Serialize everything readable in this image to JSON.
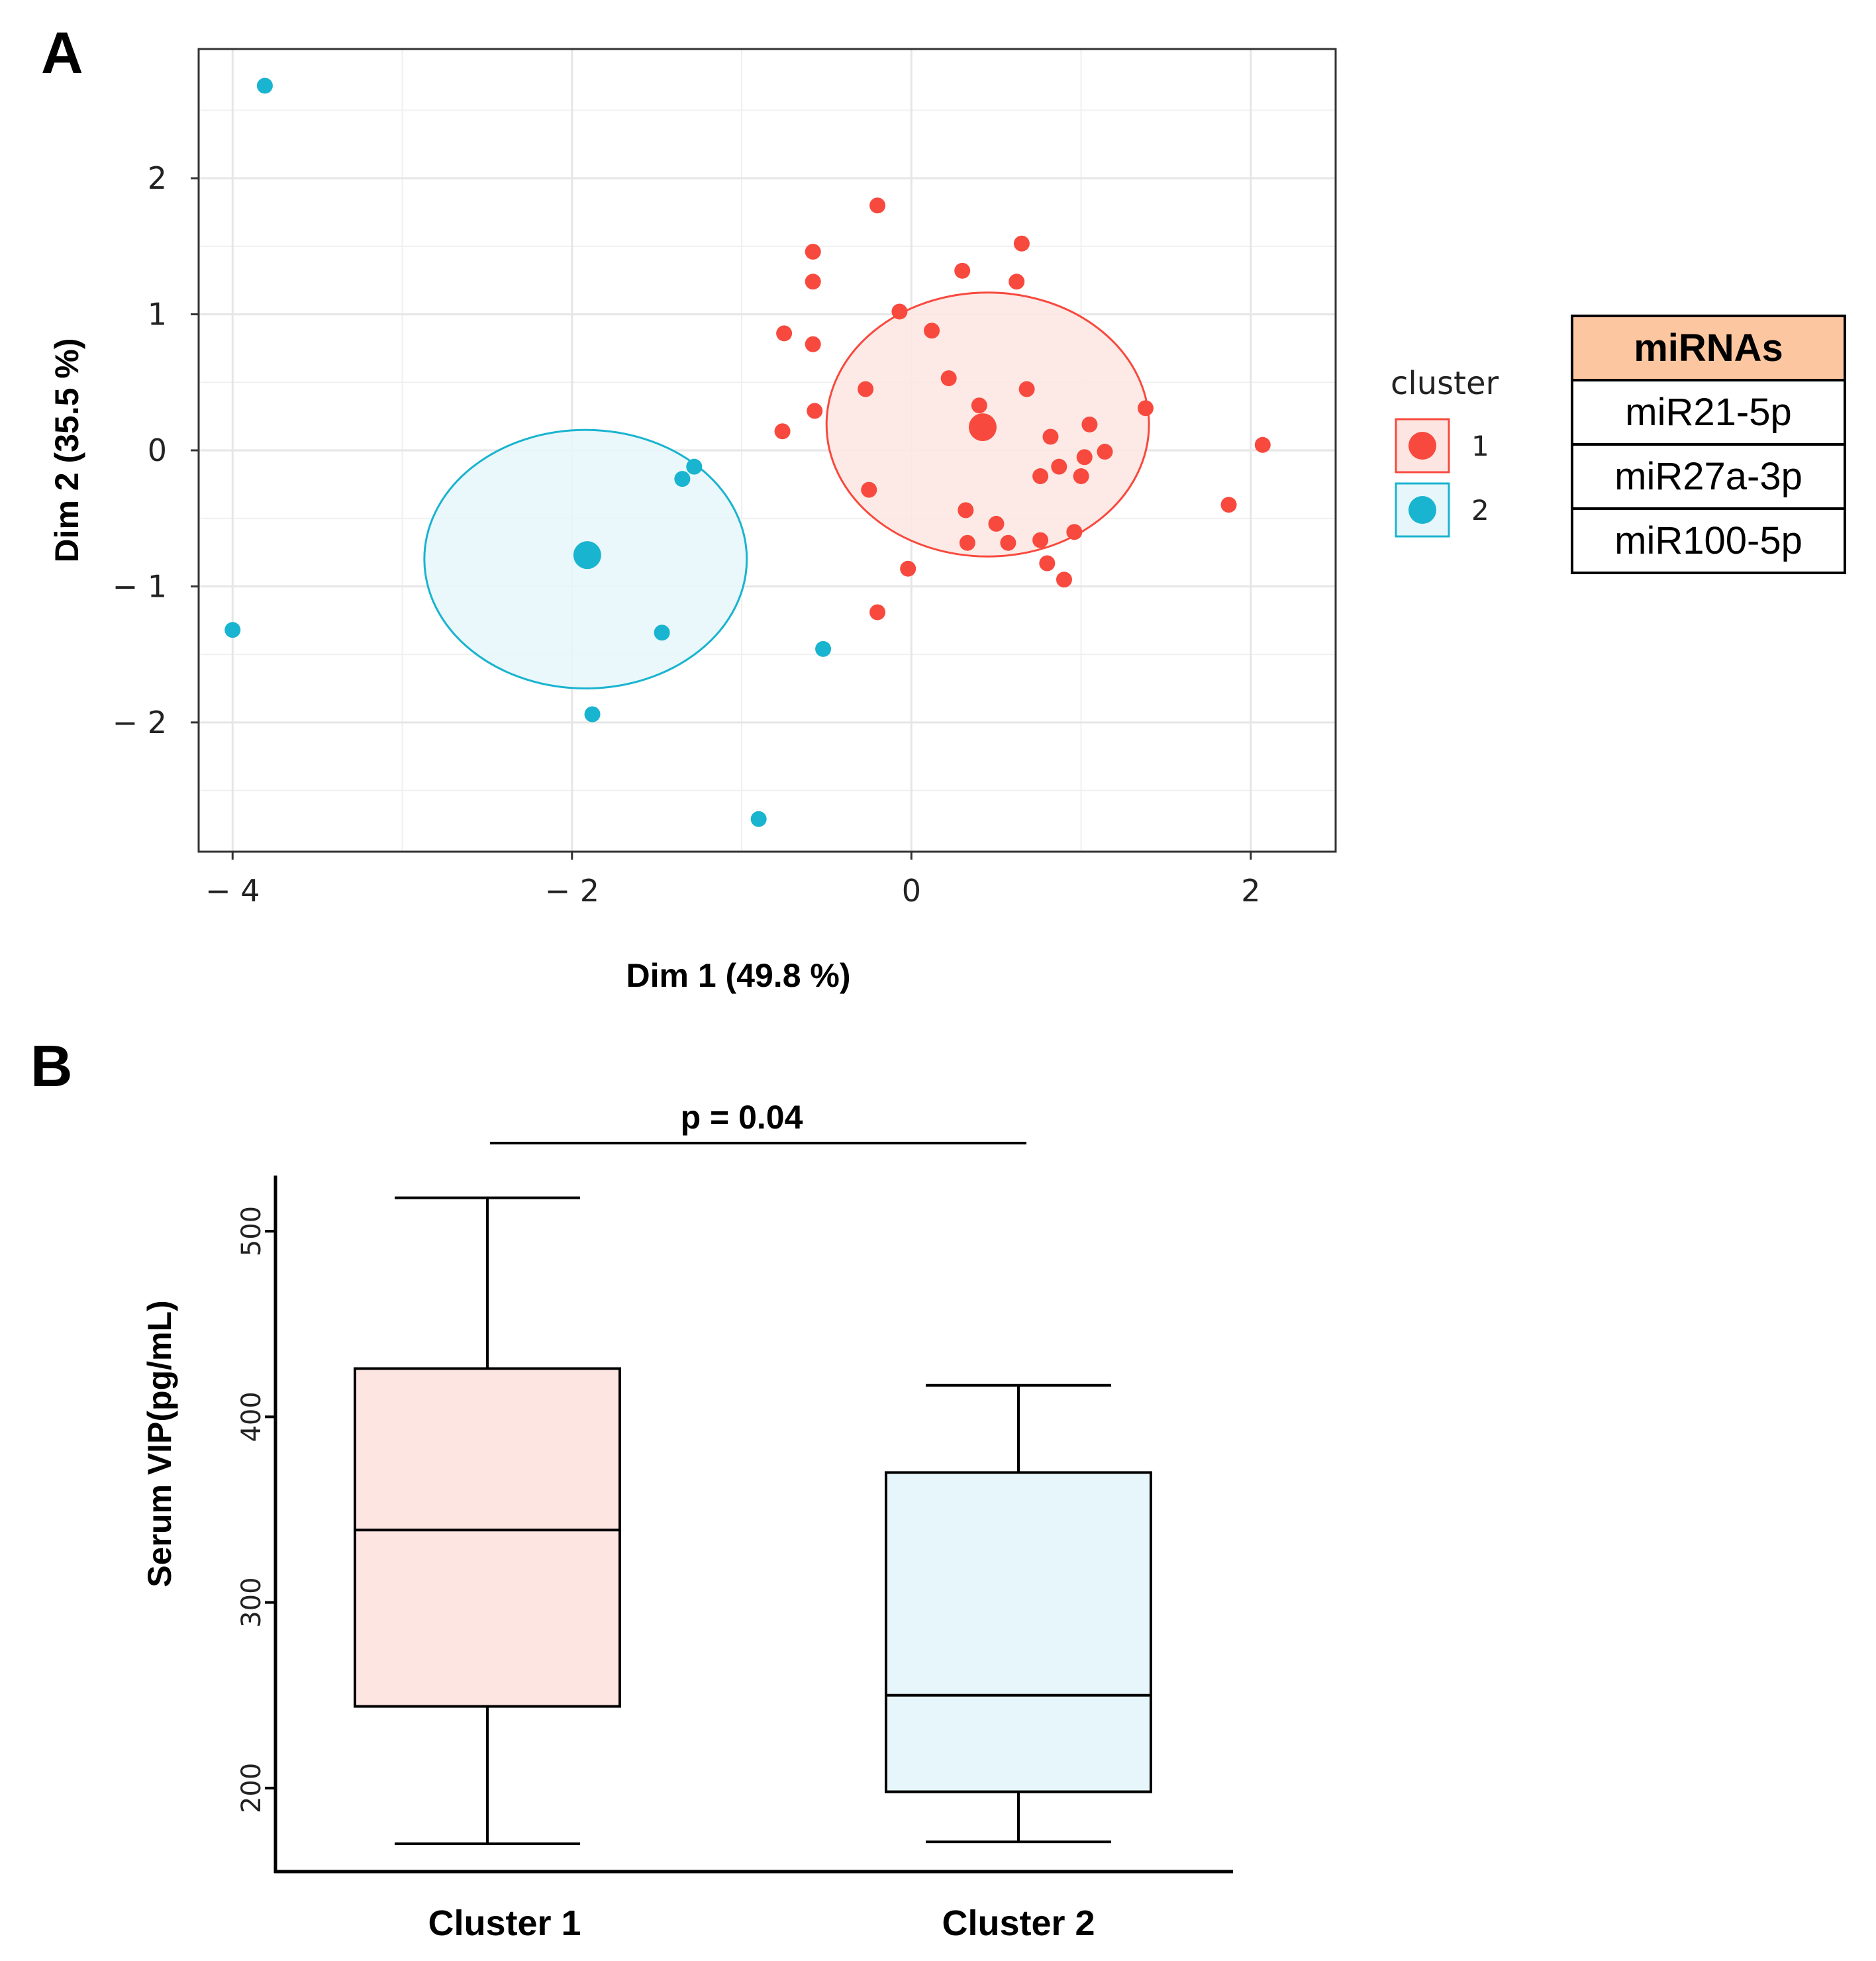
{
  "colors": {
    "cluster1": "#f8493e",
    "cluster2": "#19b4cf",
    "cluster1_fill": "#fde6e2",
    "cluster2_fill": "#e6f6fa",
    "table_header": "#fcc7a0",
    "grid": "#e6e6e6"
  },
  "chart_data": [
    {
      "panel": "A",
      "type": "scatter",
      "xlabel": "Dim 1 (49.8 %)",
      "ylabel": "Dim 2 (35.5 %)",
      "xlim": [
        -4.2,
        2.5
      ],
      "ylim": [
        -2.95,
        2.95
      ],
      "xticks": [
        -4,
        -2,
        0,
        2
      ],
      "xtick_labels": [
        "− 4",
        "− 2",
        "0",
        "2"
      ],
      "yticks": [
        -2,
        -1,
        0,
        1,
        2
      ],
      "ytick_labels": [
        "− 2",
        "− 1",
        "0",
        "1",
        "2"
      ],
      "grid": true,
      "legend": {
        "title": "cluster",
        "position": "right",
        "entries": [
          {
            "label": "1",
            "color": "#f8493e"
          },
          {
            "label": "2",
            "color": "#19b4cf"
          }
        ]
      },
      "series": [
        {
          "name": "1",
          "color": "#f8493e",
          "centroid": [
            0.42,
            0.17
          ],
          "ellipse": {
            "cx": 0.45,
            "cy": 0.19,
            "rx": 0.95,
            "ry": 0.97
          },
          "points": [
            [
              -0.2,
              1.8
            ],
            [
              0.65,
              1.52
            ],
            [
              -0.58,
              1.46
            ],
            [
              0.3,
              1.32
            ],
            [
              -0.58,
              1.24
            ],
            [
              0.62,
              1.24
            ],
            [
              -0.07,
              1.02
            ],
            [
              -0.75,
              0.86
            ],
            [
              0.12,
              0.88
            ],
            [
              -0.58,
              0.78
            ],
            [
              0.22,
              0.53
            ],
            [
              -0.27,
              0.45
            ],
            [
              0.68,
              0.45
            ],
            [
              0.4,
              0.33
            ],
            [
              1.38,
              0.31
            ],
            [
              -0.57,
              0.29
            ],
            [
              1.05,
              0.19
            ],
            [
              -0.76,
              0.14
            ],
            [
              0.82,
              0.1
            ],
            [
              1.14,
              -0.01
            ],
            [
              2.07,
              0.04
            ],
            [
              1.02,
              -0.05
            ],
            [
              0.87,
              -0.12
            ],
            [
              0.76,
              -0.19
            ],
            [
              1.0,
              -0.19
            ],
            [
              -0.25,
              -0.29
            ],
            [
              1.87,
              -0.4
            ],
            [
              0.32,
              -0.44
            ],
            [
              0.5,
              -0.54
            ],
            [
              0.96,
              -0.6
            ],
            [
              0.76,
              -0.66
            ],
            [
              0.33,
              -0.68
            ],
            [
              0.57,
              -0.68
            ],
            [
              0.8,
              -0.83
            ],
            [
              -0.02,
              -0.87
            ],
            [
              0.9,
              -0.95
            ],
            [
              -0.2,
              -1.19
            ]
          ]
        },
        {
          "name": "2",
          "color": "#19b4cf",
          "centroid": [
            -1.91,
            -0.77
          ],
          "ellipse": {
            "cx": -1.92,
            "cy": -0.8,
            "rx": 0.95,
            "ry": 0.95
          },
          "points": [
            [
              -3.81,
              2.68
            ],
            [
              -4.0,
              -1.32
            ],
            [
              -1.28,
              -0.12
            ],
            [
              -1.35,
              -0.21
            ],
            [
              -1.47,
              -1.34
            ],
            [
              -0.52,
              -1.46
            ],
            [
              -1.88,
              -1.94
            ],
            [
              -0.9,
              -2.71
            ]
          ]
        }
      ]
    },
    {
      "panel": "B",
      "type": "box",
      "categories": [
        "Cluster 1",
        "Cluster 2"
      ],
      "ylabel": "Serum VIP(pg/mL)",
      "xlabel": "",
      "ylim": [
        155,
        530
      ],
      "yticks": [
        200,
        300,
        400,
        500
      ],
      "ytick_labels": [
        "200",
        "300",
        "400",
        "500"
      ],
      "boxes": [
        {
          "name": "Cluster 1",
          "min": 170,
          "q1": 244,
          "median": 339,
          "q3": 426,
          "max": 518,
          "fill": "#fde6e2"
        },
        {
          "name": "Cluster 2",
          "min": 171,
          "q1": 198,
          "median": 250,
          "q3": 370,
          "max": 417,
          "fill": "#e6f6fa"
        }
      ],
      "annotation": {
        "text": "p = 0.04",
        "between": [
          "Cluster 1",
          "Cluster 2"
        ]
      }
    }
  ],
  "panel_a_label": "A",
  "panel_b_label": "B",
  "mirna_table": {
    "header": "miRNAs",
    "rows": [
      "miR21-5p",
      "miR27a-3p",
      "miR100-5p"
    ]
  }
}
